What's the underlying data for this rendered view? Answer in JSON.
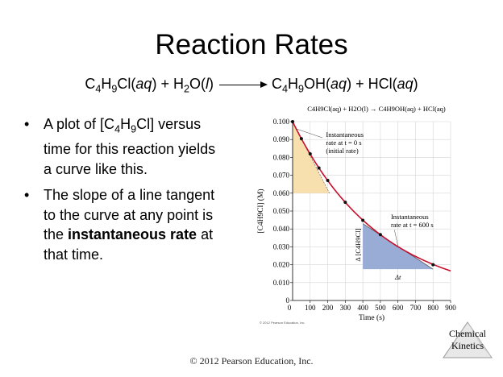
{
  "title": "Reaction Rates",
  "equation": {
    "reactant1": "C4H9Cl(aq)",
    "reactant2": "H2O(l)",
    "product1": "C4H9OH(aq)",
    "product2": "HCl(aq)"
  },
  "bullets": [
    {
      "text": "A plot of [C4H9Cl] versus time for this reaction yields a curve like this."
    },
    {
      "text_before": "The slope of a line tangent to the curve at any point is the ",
      "bold": "instantaneous rate",
      "text_after": "  at that time."
    }
  ],
  "chart_data": {
    "type": "line",
    "title": "C4H9Cl(aq) + H2O(l) → C4H9OH(aq) + HCl(aq)",
    "xlabel": "Time (s)",
    "ylabel": "[C4H9Cl] (M)",
    "xlim": [
      0,
      900
    ],
    "ylim": [
      0,
      0.1
    ],
    "x_ticks": [
      100,
      200,
      300,
      400,
      500,
      600,
      700,
      800,
      900
    ],
    "y_ticks": [
      "0.100",
      "0.090",
      "0.080",
      "0.070",
      "0.060",
      "0.050",
      "0.040",
      "0.030",
      "0.020",
      "0.010",
      "0"
    ],
    "x_tick_origin": "0",
    "grid": true,
    "points": [
      {
        "x": 0,
        "y": 0.1
      },
      {
        "x": 50,
        "y": 0.0905
      },
      {
        "x": 100,
        "y": 0.082
      },
      {
        "x": 150,
        "y": 0.0741
      },
      {
        "x": 200,
        "y": 0.0671
      },
      {
        "x": 300,
        "y": 0.0549
      },
      {
        "x": 400,
        "y": 0.0448
      },
      {
        "x": 500,
        "y": 0.0368
      },
      {
        "x": 800,
        "y": 0.02
      }
    ],
    "annotations": [
      {
        "text": "Instantaneous rate at t = 0 s (initial rate)"
      },
      {
        "text": "Instantaneous rate at t = 600 s"
      },
      {
        "text": "Δ [C4H9Cl]"
      },
      {
        "text": "Δt"
      }
    ],
    "tangents": [
      {
        "label": "initial",
        "from": {
          "x": 0,
          "y": 0.1
        },
        "to": {
          "x": 210,
          "y": 0.06
        }
      },
      {
        "label": "t600",
        "from": {
          "x": 400,
          "y": 0.043
        },
        "to": {
          "x": 800,
          "y": 0.0175
        }
      }
    ],
    "colors": {
      "triangle_initial": "#f7dfae",
      "triangle_600": "#98acd6",
      "curve": "#c8102e"
    }
  },
  "small_copyright": "© 2012 Pearson Education, Inc.",
  "footer": "© 2012 Pearson Education, Inc.",
  "corner_label": [
    "Chemical",
    "Kinetics"
  ]
}
